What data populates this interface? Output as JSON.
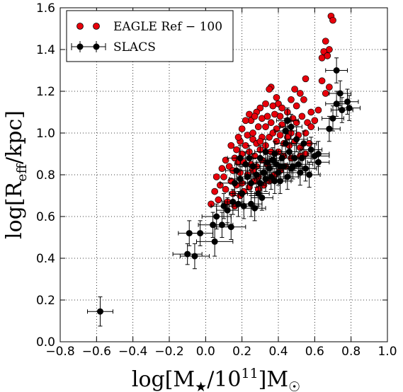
{
  "chart_data": {
    "type": "scatter",
    "xlabel_parts": {
      "prefix": "log[M",
      "sub": "★",
      "mid": "/10",
      "sup": "11",
      "suffix": "]M",
      "sub2": "☉"
    },
    "ylabel_parts": {
      "prefix": "log[R",
      "sub": "eff",
      "suffix": "/kpc]"
    },
    "xlim": [
      -0.8,
      1.0
    ],
    "ylim": [
      0.0,
      1.6
    ],
    "x_ticks": [
      "−0.8",
      "−0.6",
      "−0.4",
      "−0.2",
      "0.0",
      "0.2",
      "0.4",
      "0.6",
      "0.8",
      "1.0"
    ],
    "y_ticks": [
      "0.0",
      "0.2",
      "0.4",
      "0.6",
      "0.8",
      "1.0",
      "1.2",
      "1.4",
      "1.6"
    ],
    "grid": true,
    "legend_position": "top-left",
    "colors": {
      "eagle": "#e8000b",
      "slacs": "#000000"
    },
    "series": [
      {
        "name": "EAGLE Ref − 100",
        "points": [
          [
            0.69,
            1.56
          ],
          [
            0.7,
            1.54
          ],
          [
            0.66,
            1.44
          ],
          [
            0.68,
            1.4
          ],
          [
            0.65,
            1.39
          ],
          [
            0.64,
            1.36
          ],
          [
            0.67,
            1.37
          ],
          [
            0.64,
            1.25
          ],
          [
            0.68,
            1.22
          ],
          [
            0.66,
            1.19
          ],
          [
            0.55,
            1.26
          ],
          [
            0.52,
            1.19
          ],
          [
            0.49,
            1.21
          ],
          [
            0.36,
            1.22
          ],
          [
            0.35,
            1.21
          ],
          [
            0.39,
            1.17
          ],
          [
            0.4,
            1.14
          ],
          [
            0.47,
            1.16
          ],
          [
            0.5,
            1.13
          ],
          [
            0.54,
            1.16
          ],
          [
            0.58,
            1.1
          ],
          [
            0.6,
            1.06
          ],
          [
            0.62,
            1.11
          ],
          [
            0.45,
            1.1
          ],
          [
            0.42,
            1.12
          ],
          [
            0.37,
            1.13
          ],
          [
            0.33,
            1.14
          ],
          [
            0.3,
            1.12
          ],
          [
            0.28,
            1.1
          ],
          [
            0.25,
            1.06
          ],
          [
            0.24,
            1.09
          ],
          [
            0.22,
            1.06
          ],
          [
            0.27,
            1.08
          ],
          [
            0.29,
            1.03
          ],
          [
            0.33,
            1.03
          ],
          [
            0.36,
            1.05
          ],
          [
            0.39,
            1.02
          ],
          [
            0.42,
            1.04
          ],
          [
            0.45,
            1.06
          ],
          [
            0.48,
            1.07
          ],
          [
            0.5,
            1.05
          ],
          [
            0.53,
            1.08
          ],
          [
            0.56,
            1.05
          ],
          [
            0.58,
            1.03
          ],
          [
            0.31,
            1.07
          ],
          [
            0.34,
            1.08
          ],
          [
            0.38,
            1.09
          ],
          [
            0.44,
            1.01
          ],
          [
            0.47,
            1.0
          ],
          [
            0.51,
            0.99
          ],
          [
            0.55,
            1.0
          ],
          [
            0.2,
            1.02
          ],
          [
            0.23,
            0.99
          ],
          [
            0.26,
            0.97
          ],
          [
            0.28,
            0.95
          ],
          [
            0.31,
            0.98
          ],
          [
            0.35,
            0.98
          ],
          [
            0.39,
            0.96
          ],
          [
            0.41,
            0.99
          ],
          [
            0.43,
            0.95
          ],
          [
            0.46,
            0.94
          ],
          [
            0.49,
            0.96
          ],
          [
            0.52,
            0.93
          ],
          [
            0.22,
            0.94
          ],
          [
            0.19,
            0.96
          ],
          [
            0.17,
            0.92
          ],
          [
            0.2,
            0.9
          ],
          [
            0.24,
            0.91
          ],
          [
            0.27,
            0.89
          ],
          [
            0.3,
            0.92
          ],
          [
            0.33,
            0.94
          ],
          [
            0.36,
            0.91
          ],
          [
            0.4,
            0.91
          ],
          [
            0.43,
            0.89
          ],
          [
            0.47,
            0.88
          ],
          [
            0.14,
            0.94
          ],
          [
            0.16,
            0.88
          ],
          [
            0.18,
            0.86
          ],
          [
            0.21,
            0.86
          ],
          [
            0.25,
            0.85
          ],
          [
            0.28,
            0.84
          ],
          [
            0.31,
            0.87
          ],
          [
            0.34,
            0.85
          ],
          [
            0.37,
            0.87
          ],
          [
            0.11,
            0.87
          ],
          [
            0.13,
            0.84
          ],
          [
            0.15,
            0.82
          ],
          [
            0.19,
            0.81
          ],
          [
            0.23,
            0.8
          ],
          [
            0.26,
            0.82
          ],
          [
            0.29,
            0.79
          ],
          [
            0.32,
            0.81
          ],
          [
            0.09,
            0.83
          ],
          [
            0.1,
            0.79
          ],
          [
            0.14,
            0.77
          ],
          [
            0.17,
            0.75
          ],
          [
            0.2,
            0.76
          ],
          [
            0.24,
            0.74
          ],
          [
            0.27,
            0.77
          ],
          [
            0.06,
            0.79
          ],
          [
            0.08,
            0.75
          ],
          [
            0.11,
            0.73
          ],
          [
            0.15,
            0.71
          ],
          [
            0.19,
            0.7
          ],
          [
            0.05,
            0.72
          ],
          [
            0.03,
            0.66
          ],
          [
            0.07,
            0.68
          ],
          [
            0.12,
            0.67
          ],
          [
            0.16,
            0.65
          ],
          [
            0.21,
            0.72
          ],
          [
            0.35,
            0.77
          ],
          [
            0.38,
            0.8
          ],
          [
            0.41,
            0.82
          ],
          [
            0.44,
            0.84
          ],
          [
            0.29,
            0.73
          ],
          [
            0.32,
            0.75
          ],
          [
            0.52,
            0.89
          ],
          [
            0.55,
            0.9
          ],
          [
            0.57,
            0.95
          ],
          [
            0.41,
            1.08
          ],
          [
            0.45,
            0.98
          ],
          [
            0.37,
            1.0
          ],
          [
            0.26,
            1.0
          ],
          [
            0.18,
            0.98
          ],
          [
            0.3,
            0.96
          ]
        ]
      },
      {
        "name": "SLACS",
        "points": [
          [
            -0.58,
            0.145,
            0.07,
            0.07
          ],
          [
            -0.1,
            0.42,
            0.08,
            0.05
          ],
          [
            -0.09,
            0.52,
            0.06,
            0.06
          ],
          [
            -0.06,
            0.41,
            0.08,
            0.06
          ],
          [
            -0.03,
            0.52,
            0.07,
            0.06
          ],
          [
            0.04,
            0.56,
            0.08,
            0.06
          ],
          [
            0.05,
            0.48,
            0.1,
            0.07
          ],
          [
            0.06,
            0.6,
            0.08,
            0.06
          ],
          [
            0.09,
            0.56,
            0.06,
            0.06
          ],
          [
            0.1,
            0.65,
            0.07,
            0.06
          ],
          [
            0.12,
            0.63,
            0.06,
            0.06
          ],
          [
            0.14,
            0.55,
            0.08,
            0.06
          ],
          [
            0.15,
            0.67,
            0.06,
            0.06
          ],
          [
            0.18,
            0.66,
            0.08,
            0.06
          ],
          [
            0.16,
            0.76,
            0.08,
            0.06
          ],
          [
            0.19,
            0.78,
            0.06,
            0.06
          ],
          [
            0.2,
            0.71,
            0.07,
            0.06
          ],
          [
            0.21,
            0.65,
            0.08,
            0.06
          ],
          [
            0.17,
            0.82,
            0.06,
            0.06
          ],
          [
            0.19,
            0.88,
            0.07,
            0.06
          ],
          [
            0.23,
            0.79,
            0.06,
            0.06
          ],
          [
            0.25,
            0.76,
            0.08,
            0.06
          ],
          [
            0.26,
            0.84,
            0.06,
            0.06
          ],
          [
            0.22,
            0.85,
            0.06,
            0.06
          ],
          [
            0.24,
            0.88,
            0.07,
            0.06
          ],
          [
            0.28,
            0.8,
            0.06,
            0.06
          ],
          [
            0.3,
            0.76,
            0.08,
            0.06
          ],
          [
            0.32,
            0.81,
            0.06,
            0.06
          ],
          [
            0.34,
            0.86,
            0.06,
            0.06
          ],
          [
            0.35,
            0.83,
            0.07,
            0.06
          ],
          [
            0.37,
            0.87,
            0.06,
            0.06
          ],
          [
            0.36,
            0.79,
            0.08,
            0.06
          ],
          [
            0.38,
            0.77,
            0.06,
            0.06
          ],
          [
            0.39,
            0.85,
            0.06,
            0.06
          ],
          [
            0.4,
            0.81,
            0.08,
            0.06
          ],
          [
            0.41,
            0.77,
            0.06,
            0.06
          ],
          [
            0.42,
            0.88,
            0.06,
            0.06
          ],
          [
            0.43,
            0.84,
            0.07,
            0.06
          ],
          [
            0.44,
            0.95,
            0.06,
            0.06
          ],
          [
            0.45,
            0.79,
            0.06,
            0.06
          ],
          [
            0.46,
            0.91,
            0.06,
            0.06
          ],
          [
            0.47,
            1.03,
            0.06,
            0.06
          ],
          [
            0.48,
            0.84,
            0.07,
            0.06
          ],
          [
            0.49,
            0.88,
            0.06,
            0.06
          ],
          [
            0.5,
            0.97,
            0.06,
            0.06
          ],
          [
            0.51,
            0.85,
            0.08,
            0.06
          ],
          [
            0.52,
            0.81,
            0.06,
            0.06
          ],
          [
            0.53,
            0.88,
            0.06,
            0.06
          ],
          [
            0.54,
            0.95,
            0.07,
            0.06
          ],
          [
            0.44,
            1.01,
            0.06,
            0.06
          ],
          [
            0.45,
            1.06,
            0.06,
            0.06
          ],
          [
            0.55,
            0.83,
            0.06,
            0.06
          ],
          [
            0.57,
            0.8,
            0.06,
            0.06
          ],
          [
            0.58,
            0.92,
            0.06,
            0.06
          ],
          [
            0.6,
            0.89,
            0.08,
            0.06
          ],
          [
            0.62,
            0.86,
            0.06,
            0.06
          ],
          [
            0.68,
            1.02,
            0.06,
            0.06
          ],
          [
            0.7,
            1.07,
            0.06,
            0.06
          ],
          [
            0.72,
            1.3,
            0.06,
            0.06
          ],
          [
            0.74,
            1.19,
            0.06,
            0.06
          ],
          [
            0.72,
            1.14,
            0.06,
            0.06
          ],
          [
            0.75,
            1.11,
            0.06,
            0.06
          ],
          [
            0.78,
            1.15,
            0.06,
            0.06
          ],
          [
            0.79,
            1.12,
            0.06,
            0.06
          ],
          [
            0.62,
            0.9,
            0.06,
            0.06
          ],
          [
            0.25,
            0.66,
            0.06,
            0.06
          ],
          [
            0.27,
            0.64,
            0.06,
            0.06
          ],
          [
            0.29,
            0.71,
            0.06,
            0.06
          ],
          [
            0.31,
            0.69,
            0.06,
            0.06
          ],
          [
            0.33,
            0.78,
            0.06,
            0.06
          ],
          [
            0.3,
            0.88,
            0.06,
            0.06
          ],
          [
            0.33,
            0.91,
            0.06,
            0.06
          ],
          [
            0.38,
            0.9,
            0.06,
            0.06
          ],
          [
            0.41,
            0.84,
            0.06,
            0.06
          ],
          [
            0.47,
            0.83,
            0.06,
            0.06
          ]
        ]
      }
    ]
  }
}
